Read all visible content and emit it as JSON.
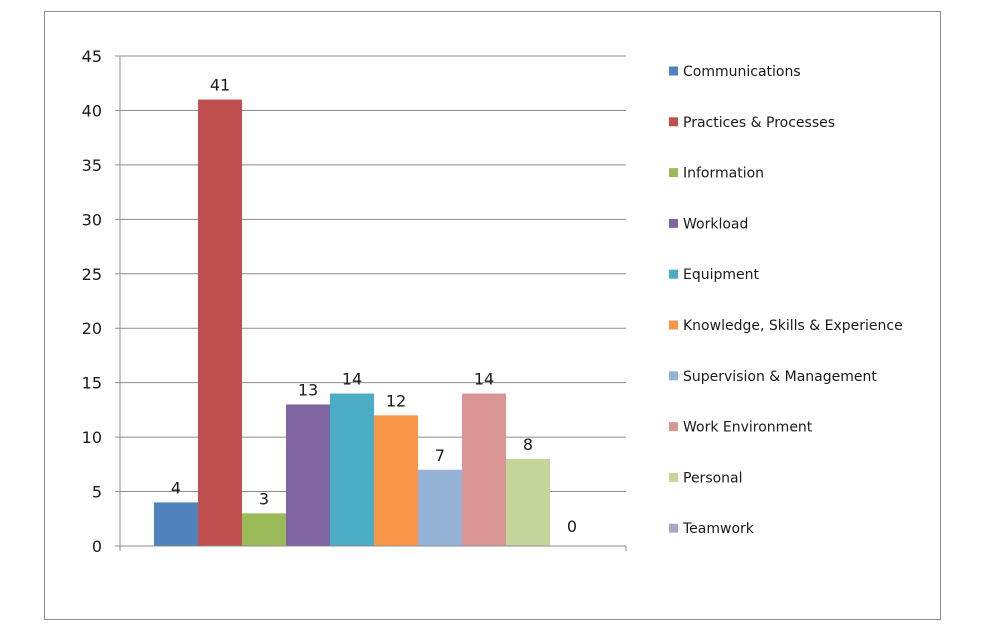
{
  "chart_data": {
    "type": "bar",
    "title": "",
    "xlabel": "",
    "ylabel": "",
    "ylim": [
      0,
      45
    ],
    "yticks": [
      0,
      5,
      10,
      15,
      20,
      25,
      30,
      35,
      40,
      45
    ],
    "grid": true,
    "legend_position": "right",
    "categories": [
      "Communications",
      "Practices & Processes",
      "Information",
      "Workload",
      "Equipment",
      "Knowledge, Skills & Experience",
      "Supervision & Management",
      "Work Environment",
      "Personal",
      "Teamwork"
    ],
    "values": [
      4,
      41,
      3,
      13,
      14,
      12,
      7,
      14,
      8,
      0
    ],
    "colors": [
      "#4F81BD",
      "#C0504D",
      "#9BBB59",
      "#8064A2",
      "#4BACC6",
      "#F79646",
      "#95B3D7",
      "#D99694",
      "#C3D69B",
      "#B3A2C7"
    ]
  }
}
